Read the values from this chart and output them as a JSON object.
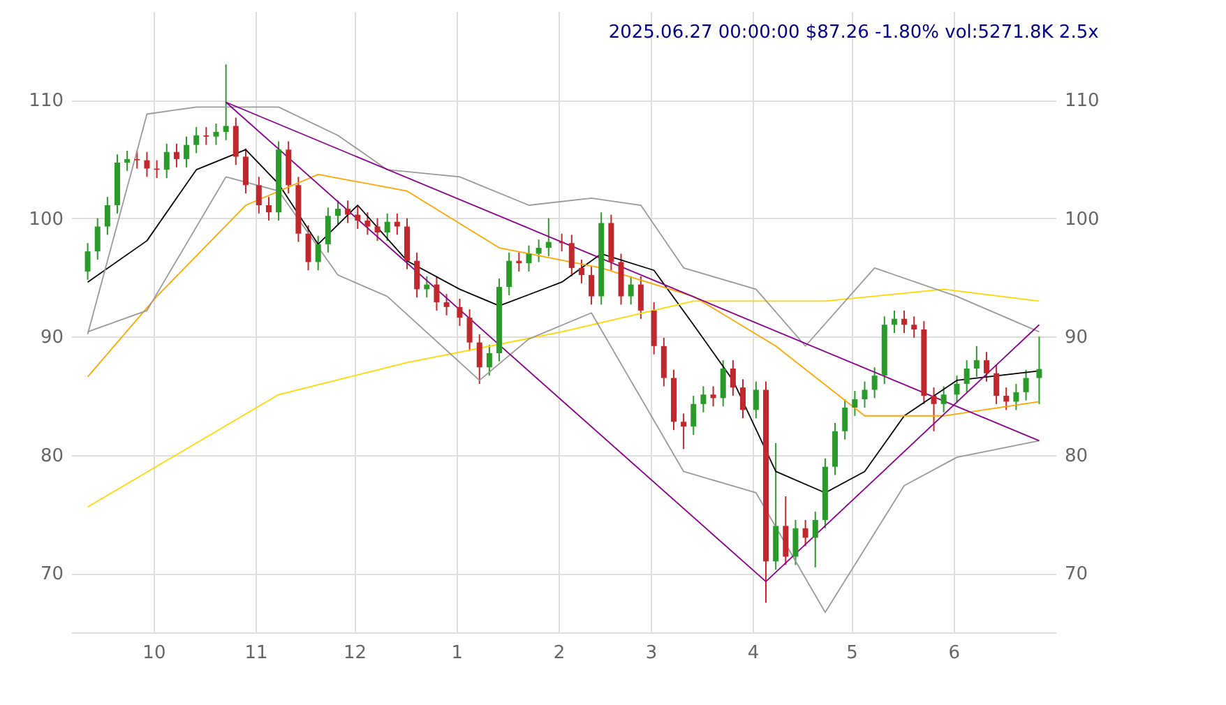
{
  "chart_data": {
    "type": "candlestick",
    "title": "2025.06.27 00:00:00 $87.26 -1.80% vol:5271.8K 2.5x",
    "x": [
      "2024-09-11",
      "2024-09-14",
      "2024-09-17",
      "2024-09-20",
      "2024-09-23",
      "2024-09-26",
      "2024-09-29",
      "2024-10-02",
      "2024-10-05",
      "2024-10-08",
      "2024-10-11",
      "2024-10-14",
      "2024-10-17",
      "2024-10-20",
      "2024-10-23",
      "2024-10-26",
      "2024-10-29",
      "2024-11-02",
      "2024-11-05",
      "2024-11-08",
      "2024-11-11",
      "2024-11-14",
      "2024-11-17",
      "2024-11-20",
      "2024-11-23",
      "2024-11-26",
      "2024-11-29",
      "2024-12-02",
      "2024-12-05",
      "2024-12-08",
      "2024-12-11",
      "2024-12-14",
      "2024-12-17",
      "2024-12-20",
      "2024-12-23",
      "2024-12-26",
      "2024-12-29",
      "2025-01-02",
      "2025-01-05",
      "2025-01-08",
      "2025-01-11",
      "2025-01-14",
      "2025-01-17",
      "2025-01-20",
      "2025-01-23",
      "2025-01-26",
      "2025-01-29",
      "2025-02-02",
      "2025-02-05",
      "2025-02-08",
      "2025-02-11",
      "2025-02-14",
      "2025-02-17",
      "2025-02-20",
      "2025-02-23",
      "2025-02-26",
      "2025-03-02",
      "2025-03-05",
      "2025-03-08",
      "2025-03-11",
      "2025-03-14",
      "2025-03-17",
      "2025-03-20",
      "2025-03-23",
      "2025-03-26",
      "2025-03-29",
      "2025-04-02",
      "2025-04-05",
      "2025-04-08",
      "2025-04-11",
      "2025-04-14",
      "2025-04-17",
      "2025-04-20",
      "2025-04-23",
      "2025-04-26",
      "2025-04-29",
      "2025-05-02",
      "2025-05-05",
      "2025-05-08",
      "2025-05-11",
      "2025-05-14",
      "2025-05-17",
      "2025-05-20",
      "2025-05-23",
      "2025-05-26",
      "2025-05-29",
      "2025-06-02",
      "2025-06-05",
      "2025-06-08",
      "2025-06-11",
      "2025-06-14",
      "2025-06-17",
      "2025-06-20",
      "2025-06-23",
      "2025-06-27"
    ],
    "ohlc": [
      [
        95.5,
        97.9,
        94.8,
        97.2
      ],
      [
        97.2,
        100.0,
        96.5,
        99.3
      ],
      [
        99.3,
        101.8,
        98.6,
        101.1
      ],
      [
        101.1,
        105.4,
        100.4,
        104.7
      ],
      [
        104.7,
        105.7,
        104.0,
        105.0
      ],
      [
        105.0,
        105.7,
        104.2,
        104.9
      ],
      [
        104.9,
        105.6,
        103.5,
        104.2
      ],
      [
        104.2,
        104.9,
        103.4,
        104.1
      ],
      [
        104.1,
        106.3,
        103.4,
        105.6
      ],
      [
        105.6,
        106.3,
        104.3,
        105.0
      ],
      [
        105.0,
        106.9,
        104.3,
        106.2
      ],
      [
        106.2,
        107.7,
        105.5,
        107.0
      ],
      [
        107.0,
        107.7,
        106.2,
        106.9
      ],
      [
        106.9,
        108.0,
        106.2,
        107.3
      ],
      [
        107.3,
        113.0,
        106.6,
        107.8
      ],
      [
        107.8,
        108.5,
        104.5,
        105.2
      ],
      [
        105.2,
        105.9,
        102.1,
        102.8
      ],
      [
        102.8,
        103.5,
        100.4,
        101.1
      ],
      [
        101.1,
        101.8,
        99.8,
        100.5
      ],
      [
        100.5,
        106.5,
        99.8,
        105.8
      ],
      [
        105.8,
        106.5,
        102.1,
        102.8
      ],
      [
        102.8,
        103.5,
        98.0,
        98.7
      ],
      [
        98.7,
        99.4,
        95.6,
        96.3
      ],
      [
        96.3,
        98.5,
        95.6,
        97.8
      ],
      [
        97.8,
        100.9,
        97.1,
        100.2
      ],
      [
        100.2,
        101.5,
        99.5,
        100.8
      ],
      [
        100.8,
        101.5,
        99.6,
        100.3
      ],
      [
        100.3,
        101.0,
        99.1,
        99.8
      ],
      [
        99.8,
        100.5,
        98.6,
        99.3
      ],
      [
        99.3,
        100.0,
        98.1,
        98.8
      ],
      [
        98.8,
        100.4,
        98.1,
        99.7
      ],
      [
        99.7,
        100.4,
        98.6,
        99.3
      ],
      [
        99.3,
        100.0,
        95.7,
        96.4
      ],
      [
        96.4,
        97.1,
        93.3,
        94.0
      ],
      [
        94.0,
        95.1,
        93.3,
        94.4
      ],
      [
        94.4,
        95.1,
        92.2,
        92.9
      ],
      [
        92.9,
        93.6,
        91.8,
        92.5
      ],
      [
        92.5,
        93.2,
        90.9,
        91.6
      ],
      [
        91.6,
        92.3,
        88.8,
        89.5
      ],
      [
        89.5,
        90.2,
        86.0,
        87.4
      ],
      [
        87.4,
        89.3,
        86.7,
        88.6
      ],
      [
        88.6,
        94.9,
        87.9,
        94.2
      ],
      [
        94.2,
        97.1,
        93.5,
        96.4
      ],
      [
        96.4,
        97.1,
        95.5,
        96.2
      ],
      [
        96.2,
        97.7,
        95.5,
        97.0
      ],
      [
        97.0,
        98.2,
        96.3,
        97.5
      ],
      [
        97.5,
        100.0,
        96.8,
        98.0
      ],
      [
        98.0,
        98.7,
        97.2,
        97.9
      ],
      [
        97.9,
        98.6,
        95.1,
        95.8
      ],
      [
        95.8,
        96.5,
        94.5,
        95.2
      ],
      [
        95.2,
        95.9,
        92.7,
        93.4
      ],
      [
        93.4,
        100.5,
        92.7,
        99.6
      ],
      [
        99.6,
        100.3,
        95.6,
        96.3
      ],
      [
        96.3,
        97.0,
        92.7,
        93.4
      ],
      [
        93.4,
        95.1,
        92.7,
        94.4
      ],
      [
        94.4,
        95.1,
        91.5,
        92.2
      ],
      [
        92.2,
        92.9,
        88.5,
        89.2
      ],
      [
        89.2,
        89.9,
        85.8,
        86.5
      ],
      [
        86.5,
        87.2,
        82.1,
        82.8
      ],
      [
        82.8,
        83.5,
        80.5,
        82.4
      ],
      [
        82.4,
        85.0,
        81.7,
        84.3
      ],
      [
        84.3,
        85.8,
        83.6,
        85.1
      ],
      [
        85.1,
        85.8,
        84.1,
        84.8
      ],
      [
        84.8,
        88.0,
        84.1,
        87.3
      ],
      [
        87.3,
        88.0,
        85.0,
        85.7
      ],
      [
        85.7,
        86.4,
        83.1,
        83.8
      ],
      [
        83.8,
        86.2,
        83.1,
        85.5
      ],
      [
        85.5,
        86.2,
        67.5,
        71.0
      ],
      [
        71.0,
        81.0,
        70.3,
        74.0
      ],
      [
        74.0,
        76.5,
        70.7,
        71.4
      ],
      [
        71.4,
        74.5,
        70.7,
        73.8
      ],
      [
        73.8,
        74.5,
        72.3,
        73.0
      ],
      [
        73.0,
        75.2,
        70.5,
        74.5
      ],
      [
        74.5,
        79.7,
        73.8,
        79.0
      ],
      [
        79.0,
        82.7,
        78.3,
        82.0
      ],
      [
        82.0,
        84.7,
        81.3,
        84.0
      ],
      [
        84.0,
        85.4,
        83.3,
        84.7
      ],
      [
        84.7,
        86.2,
        84.0,
        85.5
      ],
      [
        85.5,
        87.4,
        84.8,
        86.7
      ],
      [
        86.7,
        91.7,
        86.0,
        91.0
      ],
      [
        91.0,
        92.2,
        90.3,
        91.5
      ],
      [
        91.5,
        92.2,
        90.3,
        91.0
      ],
      [
        91.0,
        91.7,
        89.9,
        90.6
      ],
      [
        90.6,
        91.3,
        84.3,
        85.0
      ],
      [
        85.0,
        85.7,
        82.0,
        84.3
      ],
      [
        84.3,
        85.8,
        83.6,
        85.1
      ],
      [
        85.1,
        86.7,
        84.4,
        86.0
      ],
      [
        86.0,
        88.0,
        85.3,
        87.3
      ],
      [
        87.3,
        89.2,
        86.6,
        88.0
      ],
      [
        88.0,
        88.7,
        86.2,
        86.9
      ],
      [
        86.9,
        87.6,
        84.3,
        85.0
      ],
      [
        85.0,
        85.7,
        83.8,
        84.5
      ],
      [
        84.5,
        86.0,
        83.8,
        85.3
      ],
      [
        85.3,
        87.2,
        84.6,
        86.5
      ],
      [
        86.5,
        90.0,
        84.3,
        87.26
      ]
    ],
    "series": [
      {
        "type": "line",
        "color": "#000000",
        "x": [
          "2024-09-11",
          "2024-09-29",
          "2024-10-14",
          "2024-10-29",
          "2024-11-08",
          "2024-11-20",
          "2024-12-02",
          "2024-12-17",
          "2025-01-02",
          "2025-01-14",
          "2025-02-02",
          "2025-02-14",
          "2025-03-02",
          "2025-03-14",
          "2025-03-26",
          "2025-04-08",
          "2025-04-23",
          "2025-05-05",
          "2025-05-17",
          "2025-06-02",
          "2025-06-27"
        ],
        "values": [
          94.6,
          98.1,
          104.1,
          105.8,
          102.9,
          97.8,
          101.1,
          96.4,
          94.0,
          92.6,
          94.6,
          97.0,
          95.6,
          91.0,
          86.3,
          78.6,
          76.8,
          78.6,
          83.3,
          86.3,
          87.1
        ]
      },
      {
        "type": "line",
        "color": "#ffa500",
        "x": [
          "2024-09-11",
          "2024-10-02",
          "2024-10-29",
          "2024-11-20",
          "2024-12-17",
          "2025-01-14",
          "2025-02-14",
          "2025-03-14",
          "2025-04-08",
          "2025-05-05",
          "2025-05-29",
          "2025-06-27"
        ],
        "values": [
          86.6,
          93.4,
          101.1,
          103.7,
          102.3,
          97.5,
          95.8,
          93.4,
          89.2,
          83.3,
          83.3,
          84.5
        ]
      },
      {
        "type": "line",
        "color": "#ffd700",
        "x": [
          "2024-09-11",
          "2024-11-08",
          "2024-12-17",
          "2025-02-02",
          "2025-03-14",
          "2025-04-23",
          "2025-05-29",
          "2025-06-27"
        ],
        "values": [
          75.6,
          85.1,
          87.8,
          90.4,
          93.0,
          93.0,
          94.0,
          93.0
        ]
      },
      {
        "type": "line",
        "color": "#999999",
        "x": [
          "2024-09-11",
          "2024-09-29",
          "2024-10-14",
          "2024-11-08",
          "2024-11-26",
          "2024-12-11",
          "2025-01-02",
          "2025-01-23",
          "2025-02-11",
          "2025-02-26",
          "2025-03-11",
          "2025-04-02",
          "2025-04-17",
          "2025-05-08",
          "2025-06-02",
          "2025-06-27"
        ],
        "values": [
          90.2,
          108.8,
          109.4,
          109.4,
          107.0,
          104.1,
          103.5,
          101.1,
          101.7,
          101.1,
          95.8,
          94.0,
          89.2,
          95.8,
          93.4,
          90.4
        ]
      },
      {
        "type": "line",
        "color": "#999999",
        "x": [
          "2024-09-11",
          "2024-09-29",
          "2024-10-23",
          "2024-11-08",
          "2024-11-26",
          "2024-12-11",
          "2025-01-08",
          "2025-01-23",
          "2025-02-11",
          "2025-03-11",
          "2025-04-02",
          "2025-04-23",
          "2025-05-17",
          "2025-06-02",
          "2025-06-27"
        ],
        "values": [
          90.4,
          92.2,
          103.5,
          102.3,
          95.2,
          93.4,
          86.3,
          89.8,
          92.0,
          78.6,
          76.8,
          66.7,
          77.4,
          79.8,
          81.2
        ]
      },
      {
        "type": "line",
        "color": "#8b008b",
        "x": [
          "2024-10-23",
          "2025-06-27"
        ],
        "values": [
          109.8,
          81.2
        ]
      },
      {
        "type": "line",
        "color": "#8b008b",
        "x": [
          "2024-10-23",
          "2025-04-05",
          "2025-06-27"
        ],
        "values": [
          109.8,
          69.3,
          91.0
        ]
      }
    ],
    "xlim": [
      "2024-09-06",
      "2025-07-02"
    ],
    "xticks": [
      {
        "value": "2024-10-01",
        "label": "10"
      },
      {
        "value": "2024-11-01",
        "label": "11"
      },
      {
        "value": "2024-12-01",
        "label": "12"
      },
      {
        "value": "2025-01-01",
        "label": "1"
      },
      {
        "value": "2025-02-01",
        "label": "2"
      },
      {
        "value": "2025-03-01",
        "label": "3"
      },
      {
        "value": "2025-04-01",
        "label": "4"
      },
      {
        "value": "2025-05-01",
        "label": "5"
      },
      {
        "value": "2025-06-01",
        "label": "6"
      }
    ],
    "ylim": [
      65,
      117.5
    ],
    "yticks": [
      70,
      80,
      90,
      100,
      110
    ],
    "y2lim": [
      65,
      117.5
    ],
    "y2ticks": [
      70,
      80,
      90,
      100,
      110
    ],
    "grid": true
  }
}
